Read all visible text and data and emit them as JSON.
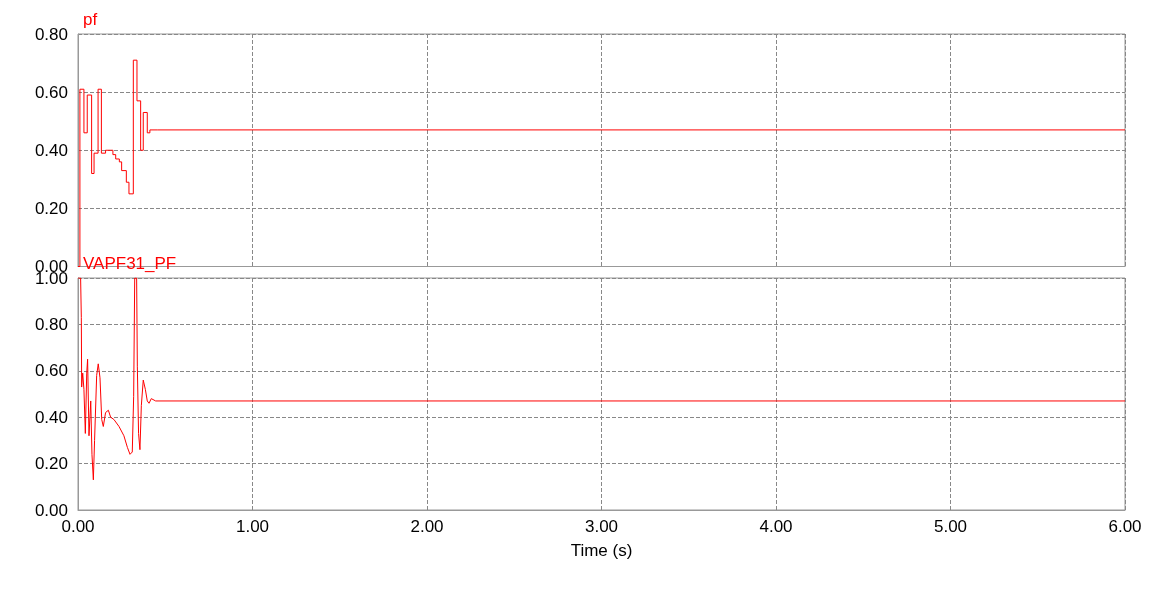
{
  "chart_data": [
    {
      "type": "step",
      "title": "pf",
      "x": [
        0,
        0.011,
        0.034,
        0.053,
        0.078,
        0.092,
        0.115,
        0.134,
        0.158,
        0.187,
        0.2,
        0.216,
        0.237,
        0.25,
        0.277,
        0.292,
        0.317,
        0.338,
        0.359,
        0.374,
        0.397,
        0.412,
        0.454,
        6
      ],
      "series": [
        {
          "color": "#ff0000",
          "values": [
            0,
            0.61,
            0.46,
            0.59,
            0.32,
            0.39,
            0.61,
            0.39,
            0.4,
            0.4,
            0.385,
            0.37,
            0.36,
            0.33,
            0.29,
            0.25,
            0.71,
            0.57,
            0.4,
            0.53,
            0.46,
            0.47,
            0.47,
            0.47
          ]
        }
      ],
      "xlim": [
        0,
        6
      ],
      "xticks": [
        0,
        1,
        2,
        3,
        4,
        5,
        6
      ],
      "ylim": [
        0,
        0.8
      ],
      "yticks": [
        {
          "value": 0,
          "label": "0.00"
        },
        {
          "value": 0.2,
          "label": "0.20"
        },
        {
          "value": 0.4,
          "label": "0.40"
        },
        {
          "value": 0.6,
          "label": "0.60"
        },
        {
          "value": 0.8,
          "label": "0.80"
        }
      ],
      "grid": true,
      "tick_labels": "y",
      "line_style": "solid",
      "marker": "none"
    },
    {
      "type": "line",
      "title": "VAPF31_PF",
      "xlabel": "Time (s)",
      "x": [
        0,
        0.006,
        0.015,
        0.019,
        0.021,
        0.027,
        0.034,
        0.042,
        0.05,
        0.055,
        0.063,
        0.073,
        0.08,
        0.088,
        0.095,
        0.107,
        0.116,
        0.126,
        0.136,
        0.145,
        0.158,
        0.174,
        0.187,
        0.206,
        0.235,
        0.263,
        0.283,
        0.298,
        0.311,
        0.319,
        0.325,
        0.336,
        0.34,
        0.347,
        0.355,
        0.363,
        0.374,
        0.386,
        0.397,
        0.407,
        0.42,
        0.445,
        6
      ],
      "series": [
        {
          "color": "#ff0000",
          "values": [
            1,
            1,
            1,
            0.83,
            0.53,
            0.59,
            0.52,
            0.33,
            0.59,
            0.65,
            0.32,
            0.47,
            0.24,
            0.13,
            0.3,
            0.58,
            0.63,
            0.57,
            0.39,
            0.36,
            0.42,
            0.43,
            0.4,
            0.39,
            0.36,
            0.32,
            0.27,
            0.24,
            0.25,
            0.49,
            1,
            1,
            0.62,
            0.33,
            0.26,
            0.45,
            0.56,
            0.52,
            0.47,
            0.46,
            0.48,
            0.47,
            0.47
          ]
        }
      ],
      "xlim": [
        0,
        6
      ],
      "xticks": [
        {
          "value": 0,
          "label": "0.00"
        },
        {
          "value": 1,
          "label": "1.00"
        },
        {
          "value": 2,
          "label": "2.00"
        },
        {
          "value": 3,
          "label": "3.00"
        },
        {
          "value": 4,
          "label": "4.00"
        },
        {
          "value": 5,
          "label": "5.00"
        },
        {
          "value": 6,
          "label": "6.00"
        }
      ],
      "ylim": [
        0,
        1
      ],
      "yticks": [
        {
          "value": 0,
          "label": "0.00"
        },
        {
          "value": 0.2,
          "label": "0.20"
        },
        {
          "value": 0.4,
          "label": "0.40"
        },
        {
          "value": 0.6,
          "label": "0.60"
        },
        {
          "value": 0.8,
          "label": "0.80"
        },
        {
          "value": 1,
          "label": "1.00"
        }
      ],
      "grid": true,
      "line_style": "solid",
      "marker": "none"
    }
  ]
}
